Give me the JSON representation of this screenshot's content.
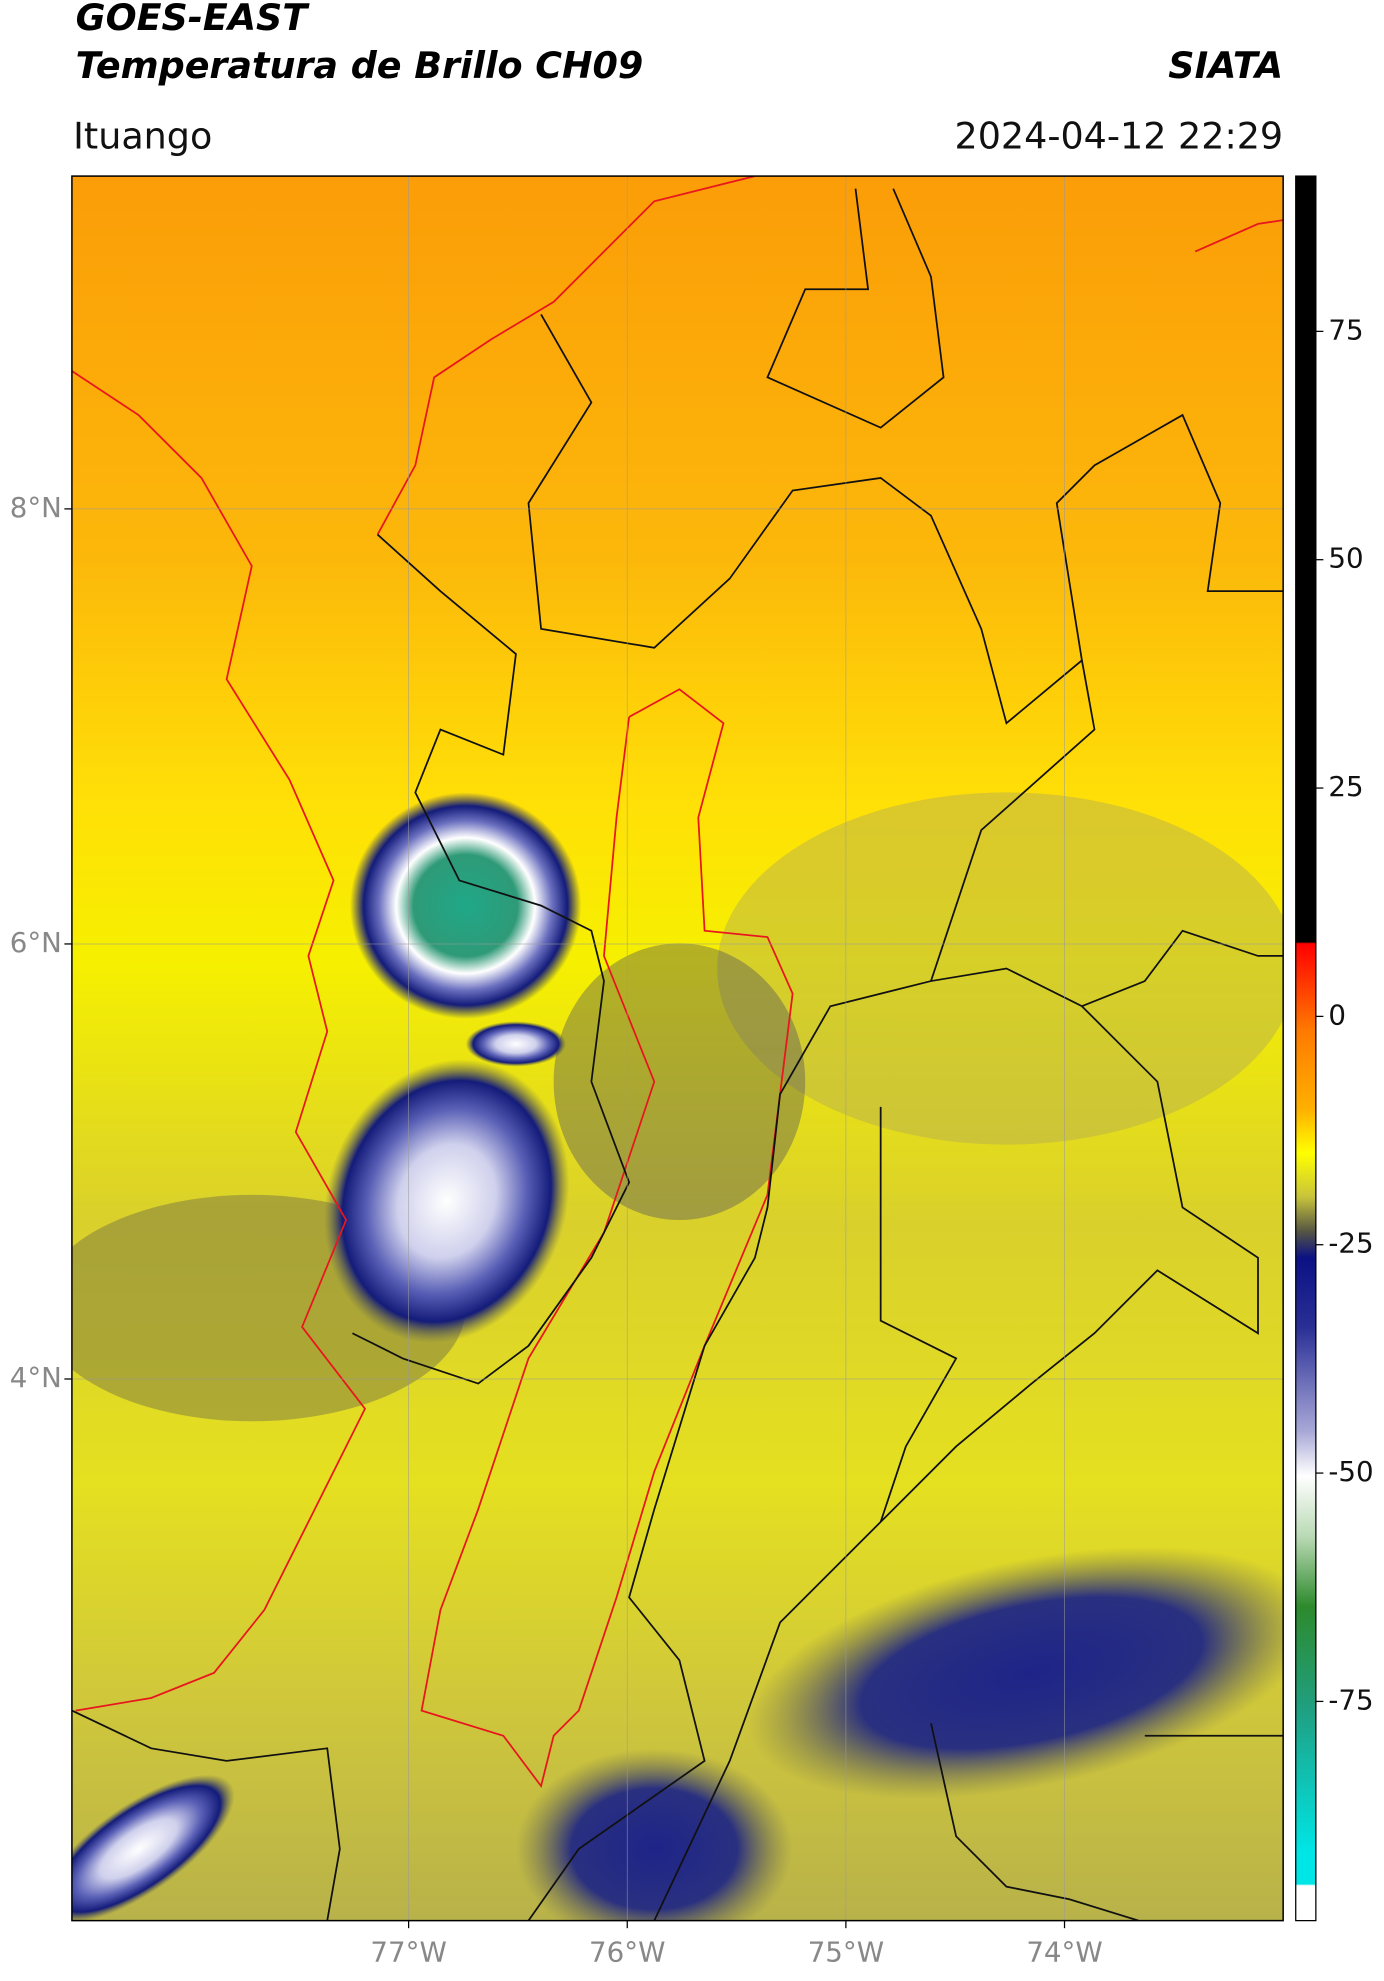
{
  "header": {
    "title": "GOES-EAST",
    "subtitle": "Temperatura de Brillo CH09",
    "organization": "SIATA",
    "location": "Ituango",
    "datetime": "2024-04-12 22:29"
  },
  "map": {
    "lonlim": [
      -78.54,
      -73.0
    ],
    "latlim": [
      1.51,
      9.53
    ],
    "lat_ticks": [
      {
        "value": 8,
        "label": "8°N"
      },
      {
        "value": 6,
        "label": "6°N"
      },
      {
        "value": 4,
        "label": "4°N"
      }
    ],
    "lon_ticks": [
      {
        "value": -77,
        "label": "77°W"
      },
      {
        "value": -76,
        "label": "76°W"
      },
      {
        "value": -75,
        "label": "75°W"
      },
      {
        "value": -74,
        "label": "74°W"
      }
    ]
  },
  "colorbar": {
    "range": [
      -99,
      92
    ],
    "ticks": [
      75,
      50,
      25,
      0,
      -25,
      -50,
      -75
    ]
  }
}
